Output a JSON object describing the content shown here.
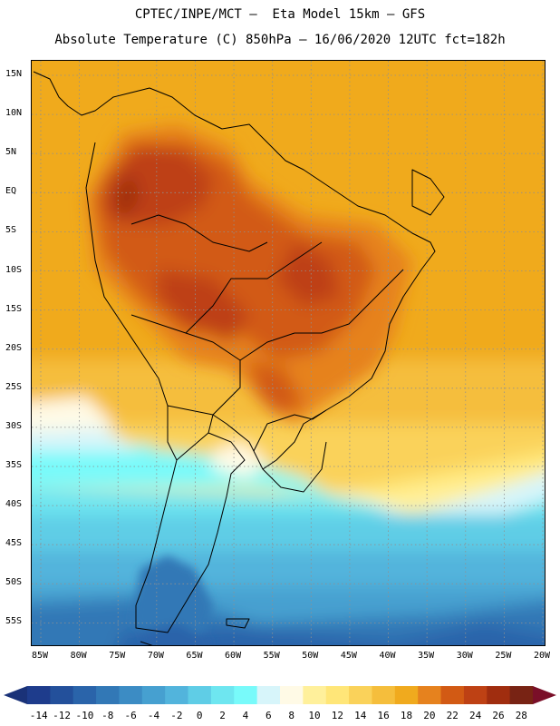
{
  "header": {
    "line1": "CPTEC/INPE/MCT –  Eta Model 15km – GFS",
    "line2": "Absolute Temperature (C) 850hPa – 16/06/2020 12UTC fct=182h"
  },
  "map": {
    "lat_labels": [
      "15N",
      "10N",
      "5N",
      "EQ",
      "5S",
      "10S",
      "15S",
      "20S",
      "25S",
      "30S",
      "35S",
      "40S",
      "45S",
      "50S",
      "55S"
    ],
    "lon_labels": [
      "85W",
      "80W",
      "75W",
      "70W",
      "65W",
      "60W",
      "55W",
      "50W",
      "45W",
      "40W",
      "35W",
      "30W",
      "25W",
      "20W"
    ],
    "lon_range": [
      -85,
      -20
    ],
    "lat_range": [
      -57,
      17
    ],
    "gridlines": "dotted"
  },
  "colorbar": {
    "labels": [
      "-14",
      "-12",
      "-10",
      "-8",
      "-6",
      "-4",
      "-2",
      "0",
      "2",
      "4",
      "6",
      "8",
      "10",
      "12",
      "14",
      "16",
      "18",
      "20",
      "22",
      "24",
      "26",
      "28"
    ],
    "colors": [
      "#1e3c8c",
      "#23509b",
      "#2a64aa",
      "#3278b6",
      "#3c8cc4",
      "#46a0d0",
      "#52b4dc",
      "#5fcde6",
      "#6ee6f0",
      "#78fafa",
      "#d7f5fa",
      "#fffae6",
      "#fff09b",
      "#ffe678",
      "#fad25a",
      "#f5be3c",
      "#f0aa1e",
      "#e6821e",
      "#d25a14",
      "#be4114",
      "#a02d0f",
      "#782314"
    ],
    "min_color": "#1a3278",
    "max_color": "#7a0f28"
  }
}
